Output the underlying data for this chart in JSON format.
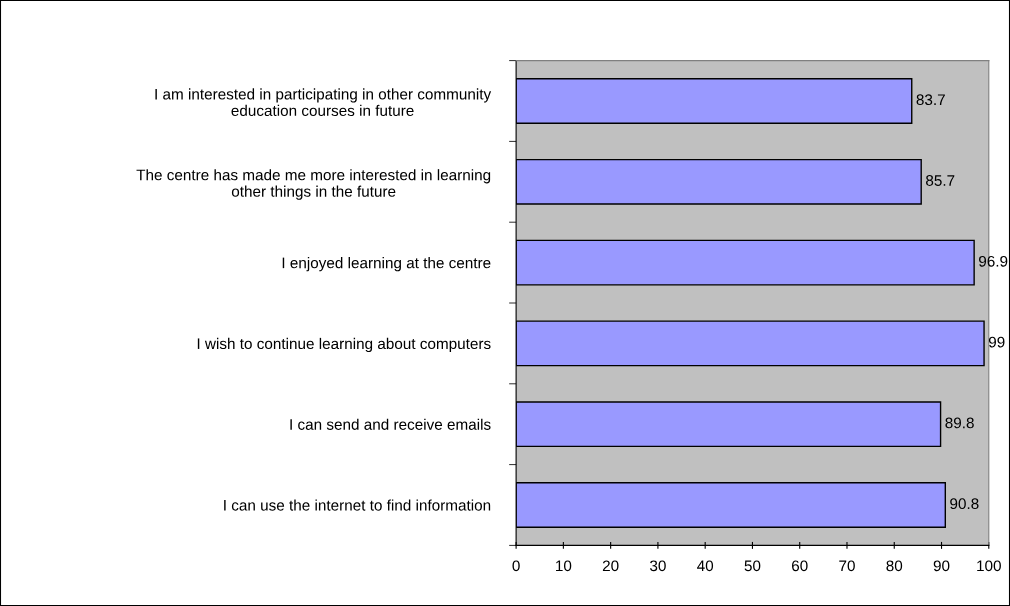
{
  "chart_data": {
    "type": "bar",
    "orientation": "horizontal",
    "categories": [
      "I am interested in participating in other community\neducation courses in future",
      "The centre has made me more interested in learning\nother things in the future",
      "I enjoyed learning at the centre",
      "I wish to continue learning about computers",
      "I can send and receive emails",
      "I can use the internet to find information"
    ],
    "values": [
      83.7,
      85.7,
      96.9,
      99,
      89.8,
      90.8
    ],
    "color": "#9999ff",
    "xlim": [
      0,
      100
    ],
    "xticks": [
      0,
      10,
      20,
      30,
      40,
      50,
      60,
      70,
      80,
      90,
      100
    ],
    "data_labels": true,
    "grid": false,
    "legend": false
  }
}
